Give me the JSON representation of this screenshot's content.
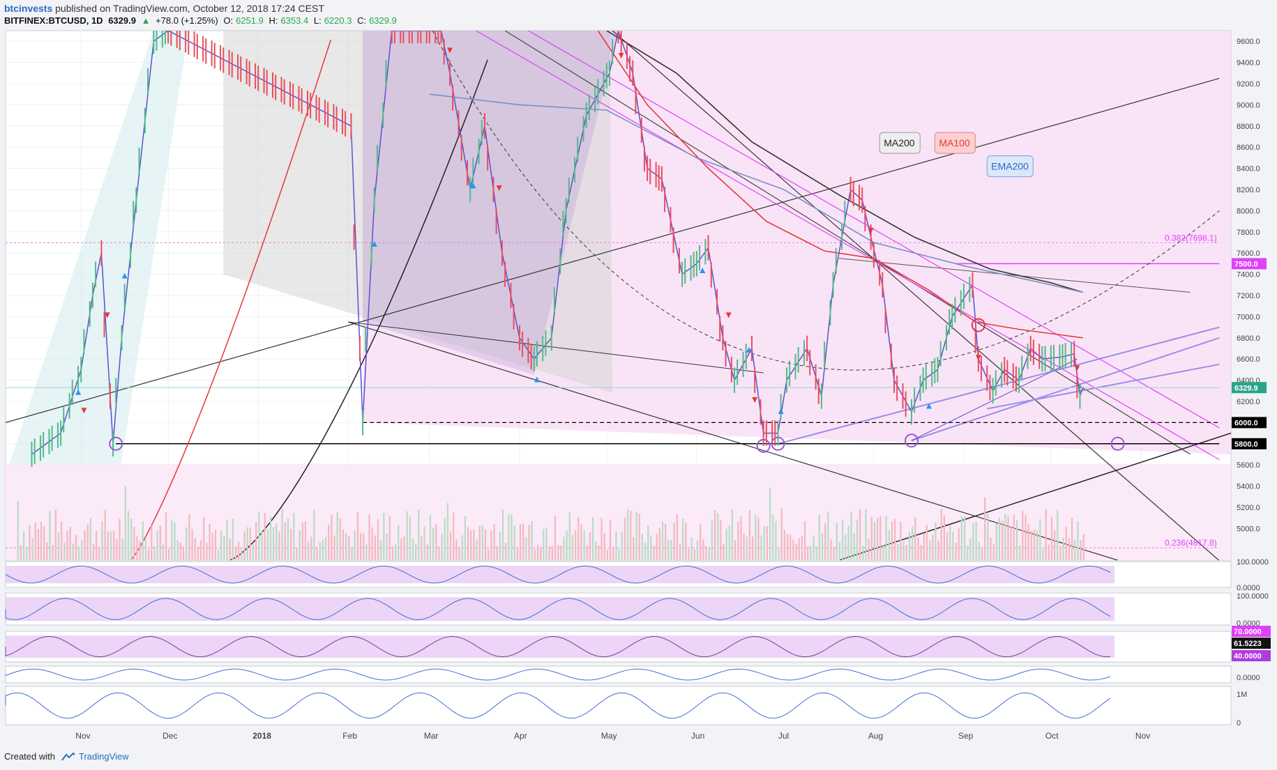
{
  "header": {
    "user": "btcinvests",
    "published": "published on TradingView.com, October 12, 2018 17:24 CEST",
    "symbol": "BITFINEX:BTCUSD, 1D",
    "last": "6329.9",
    "change": "+78.0 (+1.25%)",
    "open_label": "O:",
    "open": "6251.9",
    "high_label": "H:",
    "high": "6353.4",
    "low_label": "L:",
    "low": "6220.3",
    "close_label": "C:",
    "close": "6329.9"
  },
  "footer": {
    "created_with": "Created with",
    "brand": "TradingView"
  },
  "colors": {
    "up": "#53b987",
    "down": "#eb4d5c",
    "pink_zone": "#f3c9ef",
    "purple": "#9b59d0",
    "magenta": "#e040fb",
    "accent": "#2a6bc2"
  },
  "chart_data": {
    "type": "line",
    "title": "",
    "xlabel": "",
    "ylabel": "",
    "ylim": [
      4700,
      9700
    ],
    "y_ticks": [
      "9600.0",
      "9400.0",
      "9200.0",
      "9000.0",
      "8800.0",
      "8600.0",
      "8400.0",
      "8200.0",
      "8000.0",
      "7800.0",
      "7600.0",
      "7400.0",
      "7200.0",
      "7000.0",
      "6800.0",
      "6600.0",
      "6400.0",
      "6200.0",
      "6000.0",
      "5800.0",
      "5600.0",
      "5400.0",
      "5200.0",
      "5000.0"
    ],
    "x_ticks": [
      "Nov",
      "Dec",
      "2018",
      "Feb",
      "Mar",
      "Apr",
      "May",
      "Jun",
      "Jul",
      "Aug",
      "Sep",
      "Oct",
      "Nov"
    ],
    "x_tick_dates": [
      "2017-11-01",
      "2017-12-01",
      "2018-01-01",
      "2018-02-01",
      "2018-03-01",
      "2018-04-01",
      "2018-05-01",
      "2018-06-01",
      "2018-07-01",
      "2018-08-01",
      "2018-09-01",
      "2018-10-01",
      "2018-11-01"
    ],
    "series": [
      {
        "name": "BITFINEX:BTCUSD",
        "points": [
          [
            "2017-10-15",
            5700
          ],
          [
            "2017-10-25",
            5900
          ],
          [
            "2017-11-01",
            6500
          ],
          [
            "2017-11-05",
            7200
          ],
          [
            "2017-11-08",
            7600
          ],
          [
            "2017-11-12",
            5800
          ],
          [
            "2017-11-15",
            6800
          ],
          [
            "2017-11-20",
            8100
          ],
          [
            "2017-11-26",
            9600
          ],
          [
            "2017-12-01",
            9700
          ],
          [
            "2018-02-02",
            8800
          ],
          [
            "2018-02-06",
            6000
          ],
          [
            "2018-02-10",
            8100
          ],
          [
            "2018-02-16",
            9700
          ],
          [
            "2018-03-05",
            9700
          ],
          [
            "2018-03-08",
            9300
          ],
          [
            "2018-03-15",
            8200
          ],
          [
            "2018-03-20",
            8800
          ],
          [
            "2018-03-26",
            7600
          ],
          [
            "2018-04-01",
            6800
          ],
          [
            "2018-04-06",
            6600
          ],
          [
            "2018-04-12",
            6800
          ],
          [
            "2018-04-17",
            8000
          ],
          [
            "2018-04-24",
            8900
          ],
          [
            "2018-05-02",
            9300
          ],
          [
            "2018-05-05",
            9700
          ],
          [
            "2018-05-10",
            9300
          ],
          [
            "2018-05-15",
            8400
          ],
          [
            "2018-05-20",
            8300
          ],
          [
            "2018-05-27",
            7400
          ],
          [
            "2018-06-01",
            7500
          ],
          [
            "2018-06-05",
            7650
          ],
          [
            "2018-06-10",
            6800
          ],
          [
            "2018-06-14",
            6400
          ],
          [
            "2018-06-20",
            6700
          ],
          [
            "2018-06-24",
            5900
          ],
          [
            "2018-06-29",
            5900
          ],
          [
            "2018-07-02",
            6400
          ],
          [
            "2018-07-09",
            6700
          ],
          [
            "2018-07-14",
            6250
          ],
          [
            "2018-07-18",
            7300
          ],
          [
            "2018-07-24",
            8200
          ],
          [
            "2018-07-28",
            8100
          ],
          [
            "2018-07-31",
            7750
          ],
          [
            "2018-08-04",
            7300
          ],
          [
            "2018-08-08",
            6400
          ],
          [
            "2018-08-14",
            6100
          ],
          [
            "2018-08-18",
            6400
          ],
          [
            "2018-08-23",
            6500
          ],
          [
            "2018-08-28",
            7000
          ],
          [
            "2018-09-04",
            7300
          ],
          [
            "2018-09-06",
            6600
          ],
          [
            "2018-09-11",
            6300
          ],
          [
            "2018-09-15",
            6500
          ],
          [
            "2018-09-20",
            6400
          ],
          [
            "2018-09-24",
            6700
          ],
          [
            "2018-09-28",
            6600
          ],
          [
            "2018-10-05",
            6620
          ],
          [
            "2018-10-09",
            6650
          ],
          [
            "2018-10-11",
            6250
          ],
          [
            "2018-10-12",
            6330
          ]
        ]
      },
      {
        "name": "MA200",
        "points": [
          [
            "2018-05-01",
            9700
          ],
          [
            "2018-05-25",
            9300
          ],
          [
            "2018-06-20",
            8650
          ],
          [
            "2018-07-20",
            8150
          ],
          [
            "2018-08-15",
            7750
          ],
          [
            "2018-09-10",
            7450
          ],
          [
            "2018-10-01",
            7320
          ],
          [
            "2018-10-12",
            7230
          ]
        ]
      },
      {
        "name": "MA100",
        "points": [
          [
            "2018-04-28",
            9700
          ],
          [
            "2018-05-15",
            9000
          ],
          [
            "2018-06-05",
            8400
          ],
          [
            "2018-06-25",
            7900
          ],
          [
            "2018-07-15",
            7620
          ],
          [
            "2018-08-01",
            7550
          ],
          [
            "2018-08-20",
            7250
          ],
          [
            "2018-09-05",
            6950
          ],
          [
            "2018-09-20",
            6880
          ],
          [
            "2018-10-12",
            6800
          ]
        ]
      },
      {
        "name": "EMA200",
        "points": [
          [
            "2018-03-01",
            9100
          ],
          [
            "2018-04-01",
            9000
          ],
          [
            "2018-05-01",
            8950
          ],
          [
            "2018-06-01",
            8500
          ],
          [
            "2018-07-01",
            8200
          ],
          [
            "2018-08-01",
            7700
          ],
          [
            "2018-09-01",
            7480
          ],
          [
            "2018-10-01",
            7300
          ],
          [
            "2018-10-12",
            7230
          ]
        ]
      }
    ],
    "levels": [
      {
        "label": "7500.0",
        "value": 7500,
        "color": "#e040fb"
      },
      {
        "label": "6000.0",
        "value": 6000,
        "color": "#000000"
      },
      {
        "label": "5800.0",
        "value": 5800,
        "color": "#000000"
      },
      {
        "label": "6329.9",
        "value": 6329.9,
        "color": "#2aa48a"
      }
    ],
    "fib_labels": [
      {
        "label": "0.382(7698.1)",
        "value": 7698.1
      },
      {
        "label": "0.236(4817.8)",
        "value": 4817.8
      }
    ],
    "annotations": [
      "MA200",
      "MA100",
      "EMA200"
    ],
    "sub_panes": [
      {
        "ticks": [
          "100.0000",
          "0.0000"
        ]
      },
      {
        "ticks": [
          "100.0000",
          "0.0000"
        ]
      },
      {
        "labels": [
          "70.0000",
          "61.5223",
          "40.0000"
        ]
      },
      {
        "ticks": [
          "0.0000"
        ]
      },
      {
        "ticks": [
          "1M",
          "0"
        ]
      }
    ],
    "grid": true,
    "legend": "none"
  }
}
